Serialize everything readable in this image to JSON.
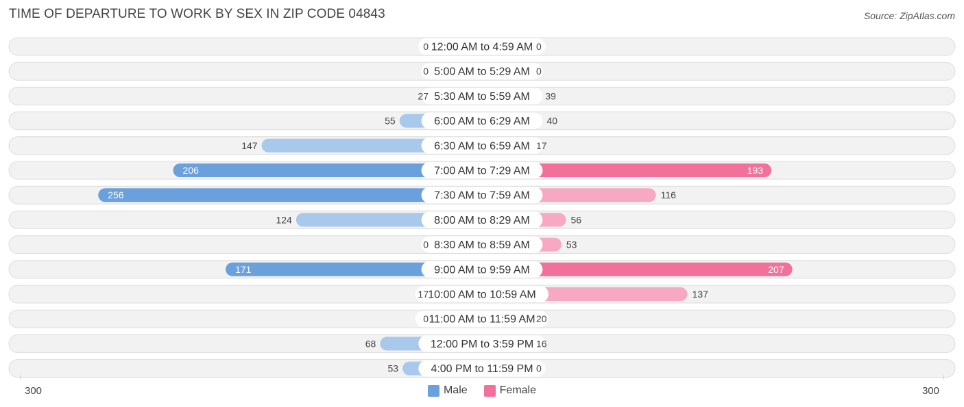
{
  "chart_data": {
    "type": "bar",
    "orientation": "horizontal-diverging",
    "title": "TIME OF DEPARTURE TO WORK BY SEX IN ZIP CODE 04843",
    "source": "Source: ZipAtlas.com",
    "categories": [
      "12:00 AM to 4:59 AM",
      "5:00 AM to 5:29 AM",
      "5:30 AM to 5:59 AM",
      "6:00 AM to 6:29 AM",
      "6:30 AM to 6:59 AM",
      "7:00 AM to 7:29 AM",
      "7:30 AM to 7:59 AM",
      "8:00 AM to 8:29 AM",
      "8:30 AM to 8:59 AM",
      "9:00 AM to 9:59 AM",
      "10:00 AM to 10:59 AM",
      "11:00 AM to 11:59 AM",
      "12:00 PM to 3:59 PM",
      "4:00 PM to 11:59 PM"
    ],
    "series": [
      {
        "name": "Male",
        "values": [
          0,
          0,
          27,
          55,
          147,
          206,
          256,
          124,
          0,
          171,
          17,
          0,
          68,
          53
        ]
      },
      {
        "name": "Female",
        "values": [
          0,
          0,
          39,
          40,
          17,
          193,
          116,
          56,
          53,
          207,
          137,
          20,
          16,
          0
        ]
      }
    ],
    "axis": {
      "left_label": "300",
      "right_label": "300",
      "max": 300
    },
    "colors": {
      "male_light": "#a8c8ec",
      "male_strong": "#6aa0dc",
      "female_light": "#f7a8c3",
      "female_strong": "#f2719b",
      "row_bg": "#f2f2f2",
      "row_border": "#dcdcdc"
    },
    "legend": [
      "Male",
      "Female"
    ]
  }
}
